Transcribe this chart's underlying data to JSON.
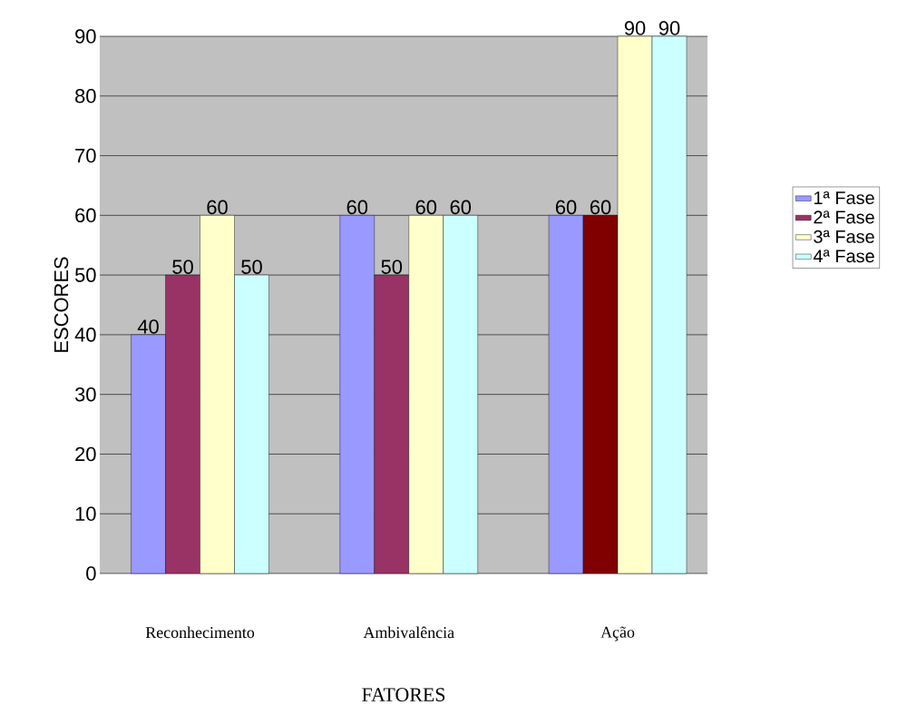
{
  "chart_data": {
    "type": "bar",
    "xlabel": "FATORES",
    "ylabel": "ESCORES",
    "categories": [
      "Reconhecimento",
      "Ambivalência",
      "Ação"
    ],
    "series": [
      {
        "name": "1ª Fase",
        "color": "#9999ff",
        "values": [
          40,
          60,
          60
        ]
      },
      {
        "name": "2ª Fase",
        "color": "#993366",
        "colors": [
          "#993366",
          "#993366",
          "#800000"
        ],
        "values": [
          50,
          50,
          60
        ]
      },
      {
        "name": "3ª Fase",
        "color": "#ffffcc",
        "values": [
          60,
          60,
          90
        ]
      },
      {
        "name": "4ª Fase",
        "color": "#ccffff",
        "values": [
          50,
          60,
          90
        ]
      }
    ],
    "ylim": [
      0,
      90
    ],
    "yticks": [
      0,
      10,
      20,
      30,
      40,
      50,
      60,
      70,
      80,
      90
    ],
    "grid": "y",
    "legend": "right",
    "data_labels": true
  }
}
